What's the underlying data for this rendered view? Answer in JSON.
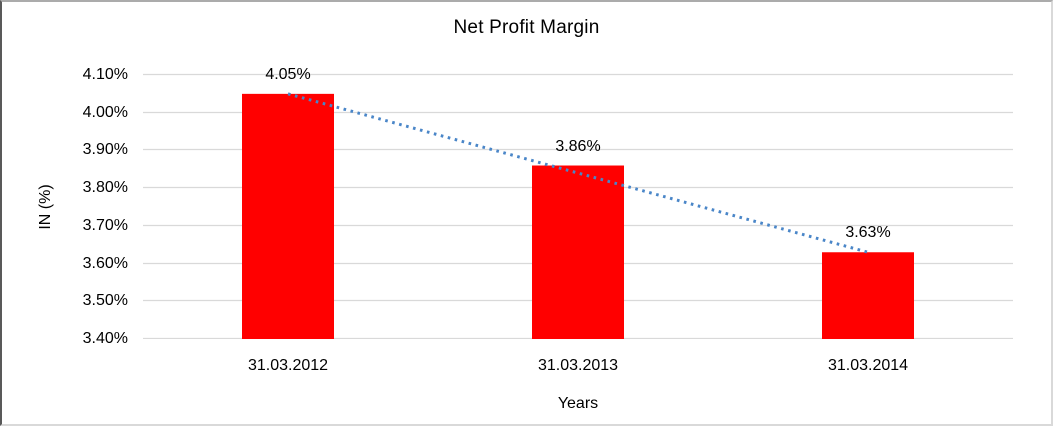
{
  "chart_data": {
    "type": "bar",
    "title": "Net Profit Margin",
    "xlabel": "Years",
    "ylabel": "IN (%)",
    "categories": [
      "31.03.2012",
      "31.03.2013",
      "31.03.2014"
    ],
    "values": [
      4.05,
      3.86,
      3.63
    ],
    "value_labels": [
      "4.05%",
      "3.86%",
      "3.63%"
    ],
    "ylim": [
      3.4,
      4.1
    ],
    "ytick_step": 0.1,
    "ytick_labels": [
      "4.10%",
      "4.00%",
      "3.90%",
      "3.80%",
      "3.70%",
      "3.60%",
      "3.50%",
      "3.40%"
    ],
    "grid": true,
    "legend_position": "none",
    "bar_color": "#ff0000",
    "gridline_color": "#d9d9d9",
    "text_color": "#000000",
    "trendline": {
      "type": "linear",
      "style": "dotted",
      "color": "#4a86c8",
      "from_value": 4.05,
      "to_value": 3.63
    }
  }
}
